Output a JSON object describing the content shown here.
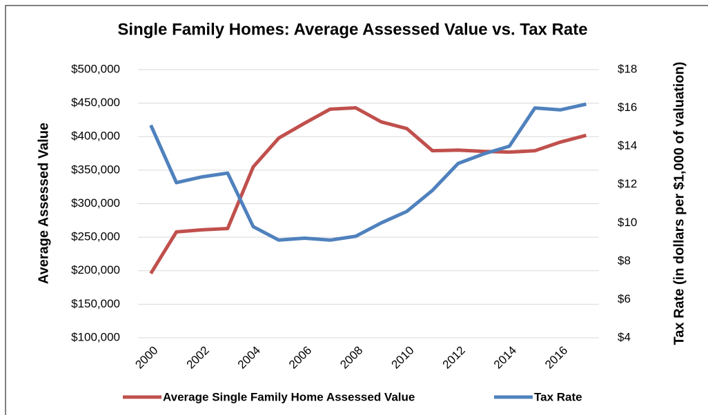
{
  "chart_data": {
    "type": "line",
    "title": "Single Family Homes: Average Assessed Value vs. Tax Rate",
    "y_label": "Average Assessed Value",
    "y2_label": "Tax Rate (in dollars per $1,000 of valuation)",
    "x": [
      2000,
      2001,
      2002,
      2003,
      2004,
      2005,
      2006,
      2007,
      2008,
      2009,
      2010,
      2011,
      2012,
      2013,
      2014,
      2015,
      2016,
      2017
    ],
    "xlim": [
      1999.5,
      2017.5
    ],
    "xticks": [
      2000,
      2002,
      2004,
      2006,
      2008,
      2010,
      2012,
      2014,
      2016
    ],
    "ylim": [
      100000,
      500000
    ],
    "yticks": [
      {
        "value": 100000,
        "label": "$100,000"
      },
      {
        "value": 150000,
        "label": "$150,000"
      },
      {
        "value": 200000,
        "label": "$200,000"
      },
      {
        "value": 250000,
        "label": "$250,000"
      },
      {
        "value": 300000,
        "label": "$300,000"
      },
      {
        "value": 350000,
        "label": "$350,000"
      },
      {
        "value": 400000,
        "label": "$400,000"
      },
      {
        "value": 450000,
        "label": "$450,000"
      },
      {
        "value": 500000,
        "label": "$500,000"
      }
    ],
    "y2lim": [
      4,
      18
    ],
    "y2ticks": [
      {
        "value": 4,
        "label": "$4"
      },
      {
        "value": 6,
        "label": "$6"
      },
      {
        "value": 8,
        "label": "$8"
      },
      {
        "value": 10,
        "label": "$10"
      },
      {
        "value": 12,
        "label": "$12"
      },
      {
        "value": 14,
        "label": "$14"
      },
      {
        "value": 16,
        "label": "$16"
      },
      {
        "value": 18,
        "label": "$18"
      }
    ],
    "grid": true,
    "legend": "bottom",
    "series": [
      {
        "name": "Average Single Family Home Assessed Value",
        "color": "#c0504d",
        "values": [
          196000,
          258000,
          261000,
          263000,
          355000,
          398000,
          420000,
          441000,
          443000,
          422000,
          412000,
          379000,
          380000,
          378000,
          377000,
          379000,
          392000,
          402000
        ]
      },
      {
        "name": "Tax Rate",
        "color": "#4f81bd",
        "axis": "y2",
        "values": [
          15.1,
          12.1,
          12.4,
          12.6,
          9.8,
          9.1,
          9.2,
          9.1,
          9.3,
          10.0,
          10.6,
          11.7,
          13.1,
          13.6,
          14.0,
          16.0,
          15.9,
          16.2
        ]
      }
    ]
  }
}
